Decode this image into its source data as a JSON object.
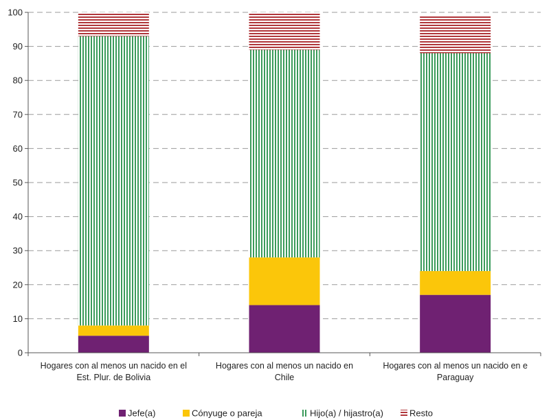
{
  "chart_data": {
    "type": "bar",
    "stacked": true,
    "categories": [
      [
        "Hogares con al menos un nacido en el",
        "Est. Plur. de Bolivia"
      ],
      [
        "Hogares con al menos un nacido en",
        "Chile"
      ],
      [
        "Hogares con al menos un nacido en e",
        "Paraguay"
      ]
    ],
    "series": [
      {
        "name": "Jefe(a)",
        "values": [
          5,
          14,
          17
        ],
        "color": "#6f2172",
        "pattern": "solid"
      },
      {
        "name": "Cónyuge o pareja",
        "values": [
          3,
          14,
          7
        ],
        "color": "#fbc60a",
        "pattern": "solid"
      },
      {
        "name": "Hijo(a) / hijastro(a)",
        "values": [
          85,
          61,
          64
        ],
        "color": "#3a9a5a",
        "pattern": "vertical-stripes"
      },
      {
        "name": "Resto",
        "values": [
          7,
          11,
          11
        ],
        "color": "#b0363a",
        "pattern": "horizontal-stripes"
      }
    ],
    "ylim": [
      0,
      100
    ],
    "yticks": [
      0,
      10,
      20,
      30,
      40,
      50,
      60,
      70,
      80,
      90,
      100
    ],
    "grid": true,
    "legend": "bottom"
  }
}
